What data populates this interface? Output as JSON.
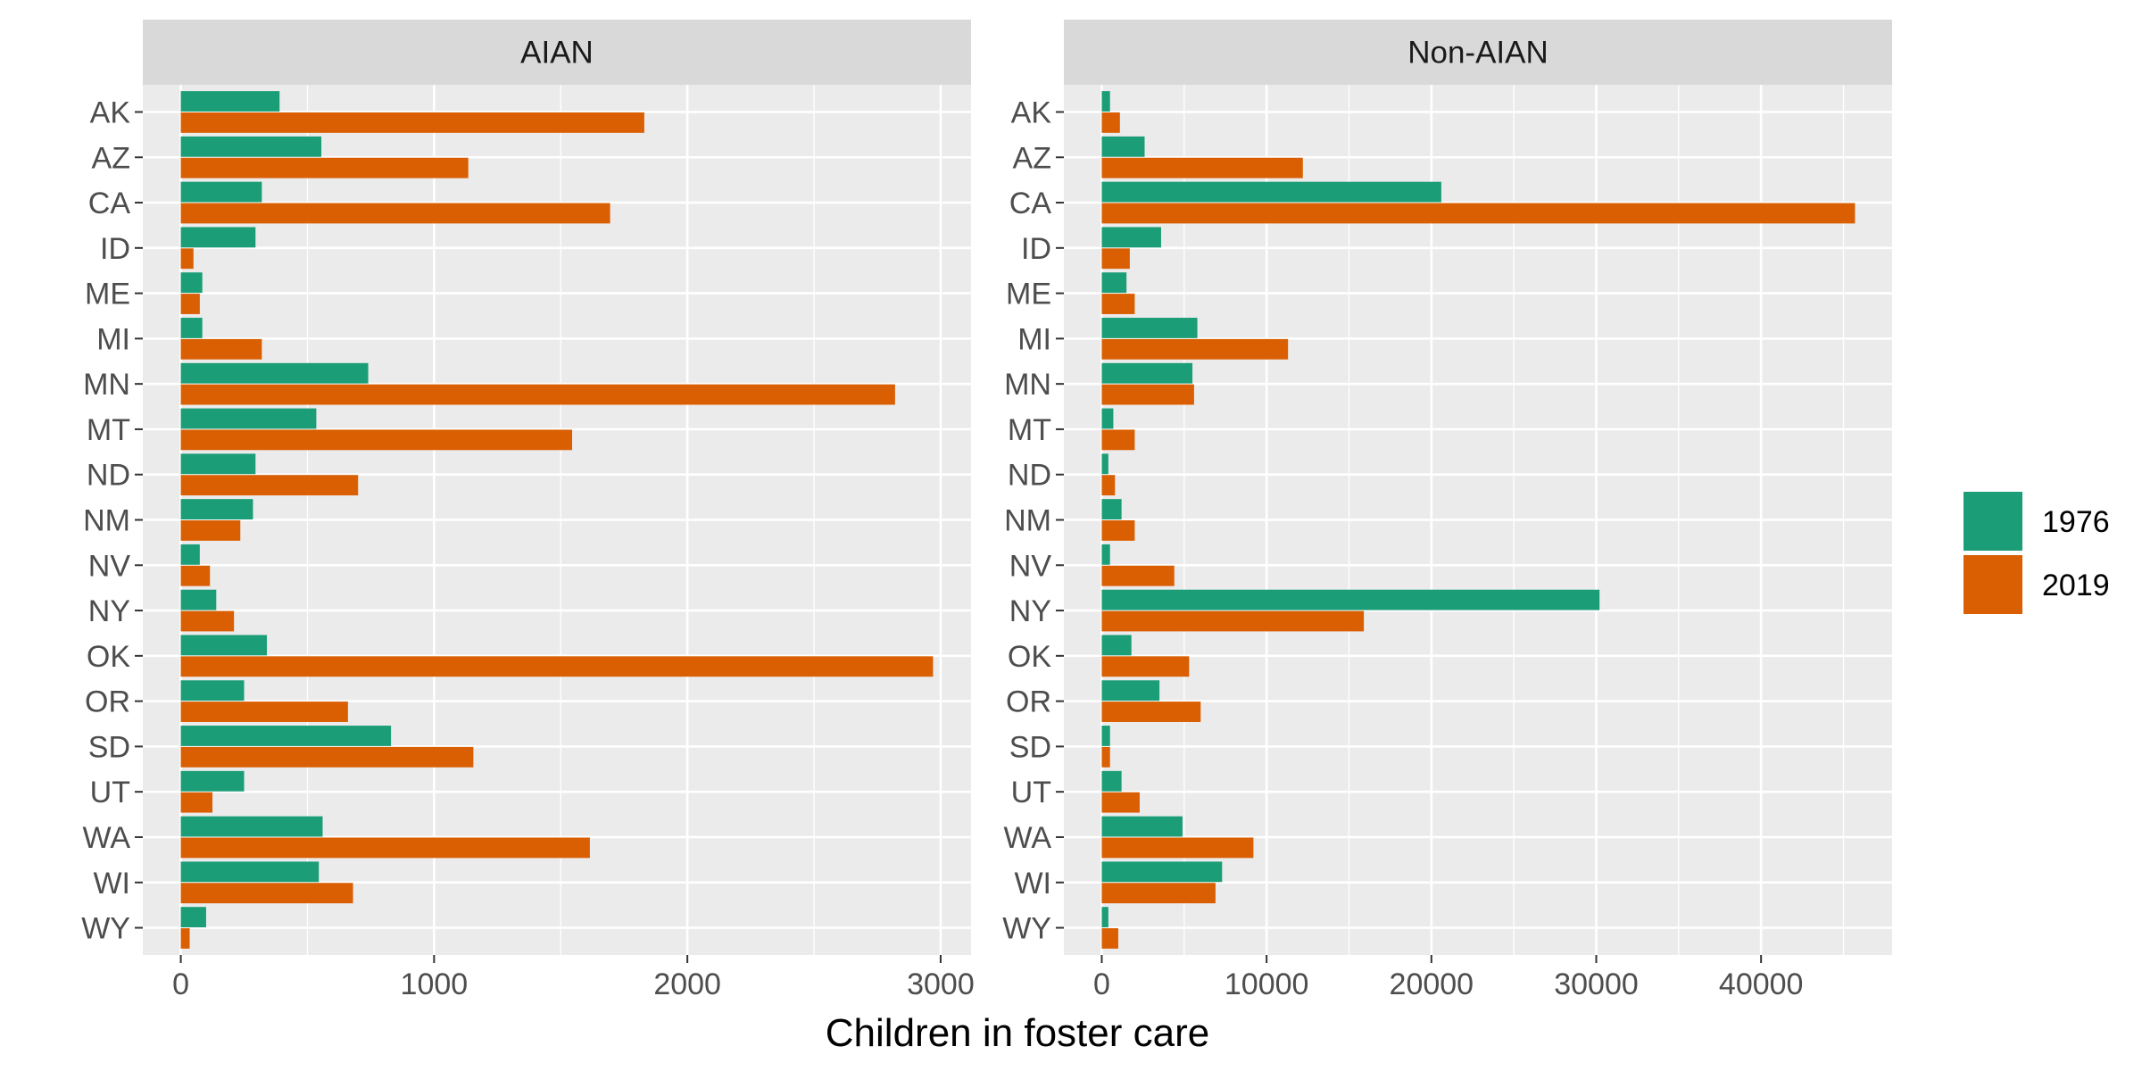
{
  "chart_data": {
    "type": "bar",
    "orientation": "horizontal",
    "xlabel": "Children in foster care",
    "ylabel": "",
    "categories": [
      "WY",
      "WI",
      "WA",
      "UT",
      "SD",
      "OR",
      "OK",
      "NY",
      "NV",
      "NM",
      "ND",
      "MT",
      "MN",
      "MI",
      "ME",
      "ID",
      "CA",
      "AZ",
      "AK"
    ],
    "legend": {
      "position": "right",
      "entries": [
        "1976",
        "2019"
      ]
    },
    "colors": {
      "1976": "#1b9e77",
      "2019": "#d95f02"
    },
    "grid": true,
    "panels": [
      {
        "title": "AIAN",
        "xlim": [
          -150,
          3120
        ],
        "xticks": [
          0,
          1000,
          2000,
          3000
        ],
        "xtick_labels": [
          "0",
          "1000",
          "2000",
          "3000"
        ],
        "series": [
          {
            "name": "1976",
            "values": [
              100,
              545,
              560,
              250,
              830,
              250,
              340,
              140,
              75,
              285,
              295,
              535,
              740,
              85,
              85,
              295,
              320,
              555,
              390
            ]
          },
          {
            "name": "2019",
            "values": [
              35,
              680,
              1615,
              125,
              1155,
              660,
              2970,
              210,
              115,
              235,
              700,
              1545,
              2820,
              320,
              75,
              50,
              1695,
              1135,
              1830
            ]
          }
        ]
      },
      {
        "title": "Non-AIAN",
        "xlim": [
          -2300,
          47950
        ],
        "xticks": [
          0,
          10000,
          20000,
          30000,
          40000
        ],
        "xtick_labels": [
          "0",
          "10000",
          "20000",
          "30000",
          "40000"
        ],
        "series": [
          {
            "name": "1976",
            "values": [
              400,
              7300,
              4900,
              1200,
              500,
              3500,
              1800,
              30200,
              500,
              1200,
              400,
              700,
              5500,
              5800,
              1500,
              3600,
              20600,
              2600,
              500
            ]
          },
          {
            "name": "2019",
            "values": [
              1000,
              6900,
              9200,
              2300,
              500,
              6000,
              5300,
              15900,
              4400,
              2000,
              800,
              2000,
              5600,
              11300,
              2000,
              1700,
              45700,
              12200,
              1100
            ]
          }
        ]
      }
    ]
  }
}
